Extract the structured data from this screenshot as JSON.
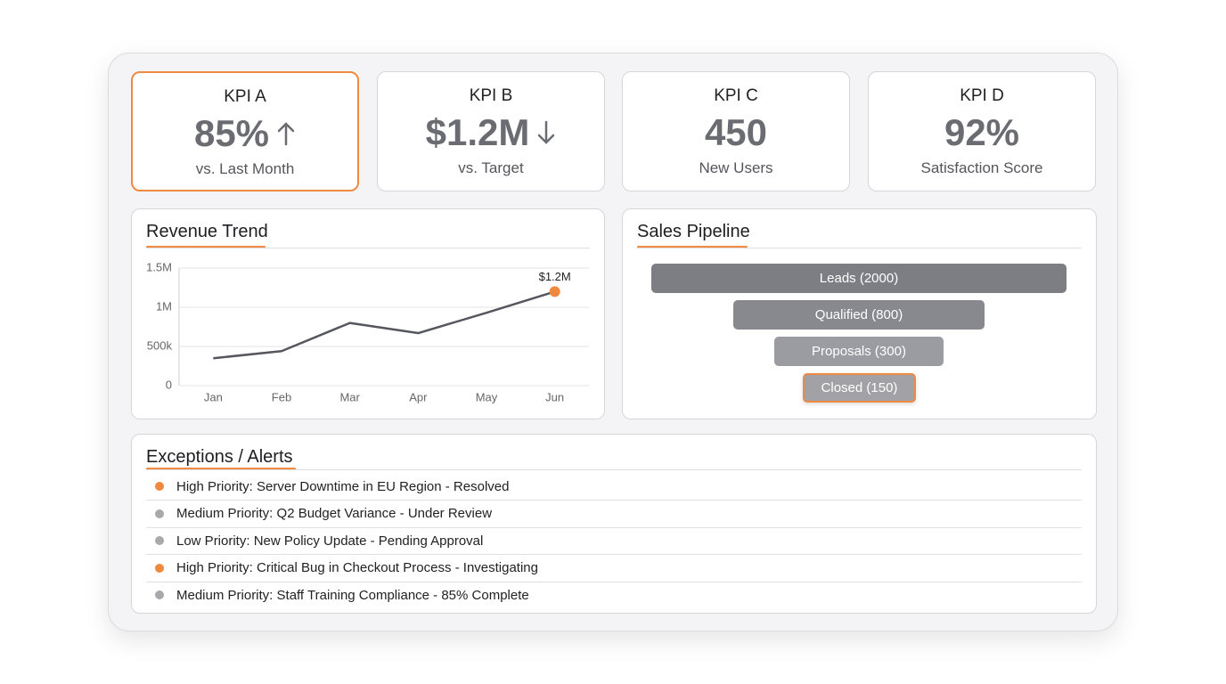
{
  "kpis": [
    {
      "title": "KPI A",
      "value": "85%",
      "subtitle": "vs. Last Month",
      "trend": "up",
      "highlighted": true
    },
    {
      "title": "KPI B",
      "value": "$1.2M",
      "subtitle": "vs. Target",
      "trend": "down"
    },
    {
      "title": "KPI C",
      "value": "450",
      "subtitle": "New Users"
    },
    {
      "title": "KPI D",
      "value": "92%",
      "subtitle": "Satisfaction Score"
    }
  ],
  "chart_data": {
    "type": "line",
    "title": "Revenue Trend",
    "categories": [
      "Jan",
      "Feb",
      "Mar",
      "Apr",
      "May",
      "Jun"
    ],
    "values": [
      350000,
      440000,
      800000,
      670000,
      930000,
      1200000
    ],
    "value_labels": [
      null,
      null,
      null,
      null,
      null,
      "$1.2M"
    ],
    "color": "#55565e",
    "highlight_color": "#f0893e",
    "ylim": [
      0,
      1500000
    ],
    "yticks": [
      0,
      {
        "value": 500000,
        "label": "500k"
      },
      {
        "value": 1000000,
        "label": "1M"
      },
      {
        "value": 1500000,
        "label": "1.5M"
      }
    ],
    "grid": true
  },
  "pipeline": {
    "title": "Sales Pipeline",
    "stages": [
      "Leads (2000)",
      "Qualified (800)",
      "Proposals (300)",
      "Closed (150)"
    ]
  },
  "alerts": {
    "title": "Exceptions / Alerts",
    "items": [
      {
        "text": "High Priority: Server Downtime in EU Region - Resolved",
        "color": "#f0893e"
      },
      {
        "text": "Medium Priority: Q2 Budget Variance - Under Review",
        "color": "#a9a9ad"
      },
      {
        "text": "Low Priority: New Policy Update - Pending Approval",
        "color": "#a9a9ad"
      },
      {
        "text": "High Priority: Critical Bug in Checkout Process - Investigating",
        "color": "#f0893e"
      },
      {
        "text": "Medium Priority: Staff Training Compliance - 85% Complete",
        "color": "#a9a9ad"
      }
    ]
  }
}
